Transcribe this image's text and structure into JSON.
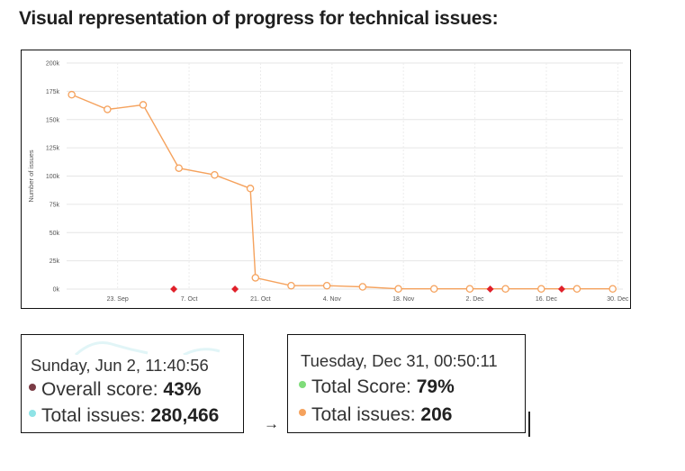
{
  "heading": "Visual representation of progress for technical issues:",
  "chart_data": {
    "type": "line",
    "ylabel": "Number of issues",
    "ylim": [
      0,
      200000
    ],
    "y_ticks": [
      {
        "value": 0,
        "label": "0k"
      },
      {
        "value": 25000,
        "label": "25k"
      },
      {
        "value": 50000,
        "label": "50k"
      },
      {
        "value": 75000,
        "label": "75k"
      },
      {
        "value": 100000,
        "label": "100k"
      },
      {
        "value": 125000,
        "label": "125k"
      },
      {
        "value": 150000,
        "label": "150k"
      },
      {
        "value": 175000,
        "label": "175k"
      },
      {
        "value": 200000,
        "label": "200k"
      }
    ],
    "xlim": [
      "2019-09-13",
      "2019-12-31"
    ],
    "x_ticks": [
      {
        "date": "2019-09-23",
        "label": "23. Sep"
      },
      {
        "date": "2019-10-07",
        "label": "7. Oct"
      },
      {
        "date": "2019-10-21",
        "label": "21. Oct"
      },
      {
        "date": "2019-11-04",
        "label": "4. Nov"
      },
      {
        "date": "2019-11-18",
        "label": "18. Nov"
      },
      {
        "date": "2019-12-02",
        "label": "2. Dec"
      },
      {
        "date": "2019-12-16",
        "label": "16. Dec"
      },
      {
        "date": "2019-12-30",
        "label": "30. Dec"
      }
    ],
    "grid": true,
    "line_color": "#f5a25d",
    "marker_color": "#e0202a",
    "series": [
      {
        "points": [
          {
            "x": "2019-09-14",
            "y": 172000
          },
          {
            "x": "2019-09-21",
            "y": 159000
          },
          {
            "x": "2019-09-28",
            "y": 163000
          },
          {
            "x": "2019-10-05",
            "y": 107000
          },
          {
            "x": "2019-10-12",
            "y": 101000
          },
          {
            "x": "2019-10-19",
            "y": 89000
          },
          {
            "x": "2019-10-20",
            "y": 10000
          },
          {
            "x": "2019-10-27",
            "y": 3000
          },
          {
            "x": "2019-11-03",
            "y": 3000
          },
          {
            "x": "2019-11-10",
            "y": 2000
          },
          {
            "x": "2019-11-17",
            "y": 200
          },
          {
            "x": "2019-11-24",
            "y": 200
          },
          {
            "x": "2019-12-01",
            "y": 200
          },
          {
            "x": "2019-12-08",
            "y": 200
          },
          {
            "x": "2019-12-15",
            "y": 200
          },
          {
            "x": "2019-12-22",
            "y": 200
          },
          {
            "x": "2019-12-29",
            "y": 206
          }
        ]
      }
    ],
    "event_markers": [
      {
        "x": "2019-10-04",
        "y": 0
      },
      {
        "x": "2019-10-16",
        "y": 0
      },
      {
        "x": "2019-12-05",
        "y": 0
      },
      {
        "x": "2019-12-19",
        "y": 0
      }
    ]
  },
  "before_card": {
    "date": "Sunday, Jun 2, 11:40:56",
    "metrics": [
      {
        "label": "Overall score:",
        "value": "43%",
        "dot_color": "#7a3b45"
      },
      {
        "label": "Total issues:",
        "value": "280,466",
        "dot_color": "#8fe3e6"
      }
    ]
  },
  "arrow": "→",
  "after_card": {
    "date": "Tuesday, Dec 31, 00:50:11",
    "metrics": [
      {
        "label": "Total Score:",
        "value": "79%",
        "dot_color": "#7fdc7a"
      },
      {
        "label": "Total issues:",
        "value": "206",
        "dot_color": "#f5a25d"
      }
    ]
  }
}
